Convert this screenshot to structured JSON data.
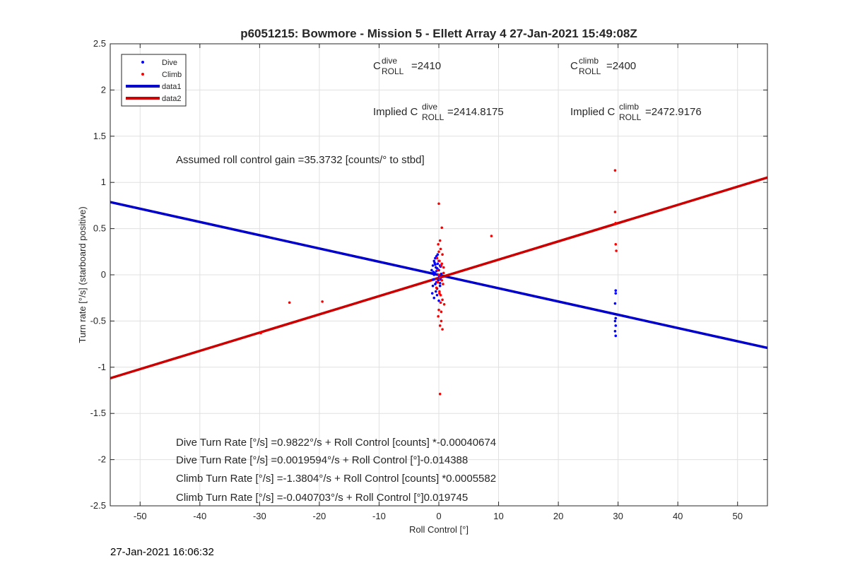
{
  "chart_data": {
    "type": "scatter",
    "title": "p6051215: Bowmore - Mission 5 - Ellett Array 4 27-Jan-2021 15:49:08Z",
    "xlabel": "Roll Control [°]",
    "ylabel": "Turn rate [°/s] (starboard positive)",
    "xlim": [
      -55,
      55
    ],
    "ylim": [
      -2.5,
      2.5
    ],
    "xticks": [
      -50,
      -40,
      -30,
      -20,
      -10,
      0,
      10,
      20,
      30,
      40,
      50
    ],
    "yticks": [
      -2.5,
      -2,
      -1.5,
      -1,
      -0.5,
      0,
      0.5,
      1,
      1.5,
      2,
      2.5
    ],
    "grid": true,
    "legend": "top-left",
    "series": [
      {
        "name": "Dive",
        "kind": "points",
        "color": "#0000ff",
        "x": [
          -1.2,
          -1.0,
          -0.9,
          -0.8,
          -0.7,
          -0.6,
          -0.5,
          -0.4,
          -0.3,
          -0.2,
          -0.1,
          0,
          0.1,
          0.2,
          0.3,
          -1.1,
          -0.8,
          -0.6,
          -0.4,
          -0.2,
          0,
          0.2,
          -0.9,
          -0.5,
          -0.3,
          0.1,
          0.4,
          -0.7,
          -0.1,
          0.3,
          -1.0,
          -0.4,
          0.0,
          -0.6,
          -0.2,
          0.2,
          -0.8,
          -0.3,
          29.6,
          29.6,
          29.5,
          29.6,
          29.5,
          29.6,
          29.5,
          29.6
        ],
        "y": [
          0.05,
          0.1,
          -0.05,
          0.15,
          0.02,
          -0.1,
          0.08,
          0.2,
          -0.15,
          0.12,
          0.0,
          0.05,
          -0.02,
          0.1,
          -0.05,
          -0.2,
          -0.25,
          0.18,
          -0.08,
          0.22,
          0.15,
          -0.12,
          0.03,
          -0.18,
          0.07,
          -0.03,
          0.01,
          0.13,
          -0.06,
          0.09,
          -0.12,
          0.04,
          -0.28,
          0.11,
          0.06,
          -0.09,
          0.0,
          -0.22,
          -0.17,
          -0.2,
          -0.31,
          -0.47,
          -0.5,
          -0.55,
          -0.61,
          -0.66
        ]
      },
      {
        "name": "Climb",
        "kind": "points",
        "color": "#ff0000",
        "x": [
          -25,
          -19.5,
          -29.8,
          8.8,
          0.0,
          0.5,
          0.2,
          -0.1,
          0.3,
          0.6,
          -0.3,
          0.1,
          0.4,
          0.8,
          -0.2,
          0.0,
          0.2,
          0.5,
          0.7,
          -0.4,
          0.1,
          0.3,
          0.6,
          0.9,
          0.0,
          -0.1,
          0.4,
          0.2,
          0.6,
          0.3,
          0.0,
          0.5,
          -0.2,
          0.1,
          0.8,
          0.4,
          0.2,
          29.5,
          29.5,
          29.6,
          29.7,
          29.5,
          29.6
        ],
        "y": [
          -0.3,
          -0.29,
          -0.63,
          0.42,
          0.77,
          0.51,
          0.37,
          0.33,
          0.28,
          0.22,
          0.18,
          0.15,
          0.1,
          0.08,
          0.05,
          0.0,
          -0.03,
          -0.06,
          -0.1,
          -0.14,
          -0.18,
          -0.22,
          -0.27,
          -0.32,
          -0.38,
          -0.45,
          -0.5,
          -0.55,
          -0.59,
          -0.3,
          0.25,
          0.12,
          -0.08,
          -0.2,
          0.02,
          -0.4,
          -1.29,
          1.13,
          0.68,
          0.33,
          0.26,
          0.55,
          0.56
        ]
      },
      {
        "name": "data1",
        "kind": "line",
        "color": "#0000cc",
        "x": [
          -55,
          55
        ],
        "y": [
          0.787,
          -0.791
        ]
      },
      {
        "name": "data2",
        "kind": "line",
        "color": "#cc0000",
        "x": [
          -55,
          55
        ],
        "y": [
          -1.119,
          1.053
        ]
      }
    ],
    "annotations": {
      "c_dive": {
        "main": "C",
        "sup": "dive",
        "sub": "ROLL",
        "value": "=2410"
      },
      "c_climb": {
        "main": "C",
        "sup": "climb",
        "sub": "ROLL",
        "value": "=2400"
      },
      "implied_dive": {
        "prefix": "Implied C",
        "sup": "dive",
        "sub": "ROLL",
        "value": "=2414.8175"
      },
      "implied_climb": {
        "prefix": "Implied C",
        "sup": "climb",
        "sub": "ROLL",
        "value": "=2472.9176"
      },
      "gain": "Assumed roll control gain =35.3732 [counts/° to stbd]",
      "eq1": "Dive Turn Rate [°/s] =0.9822°/s + Roll Control [counts] *-0.00040674",
      "eq2": "Dive Turn Rate [°/s] =0.0019594°/s + Roll Control [°]-0.014388",
      "eq3": "Climb Turn Rate [°/s] =-1.3804°/s + Roll Control [counts] *0.0005582",
      "eq4": "Climb Turn Rate [°/s] =-0.040703°/s + Roll Control [°]0.019745"
    }
  },
  "footer": {
    "timestamp": "27-Jan-2021 16:06:32"
  }
}
